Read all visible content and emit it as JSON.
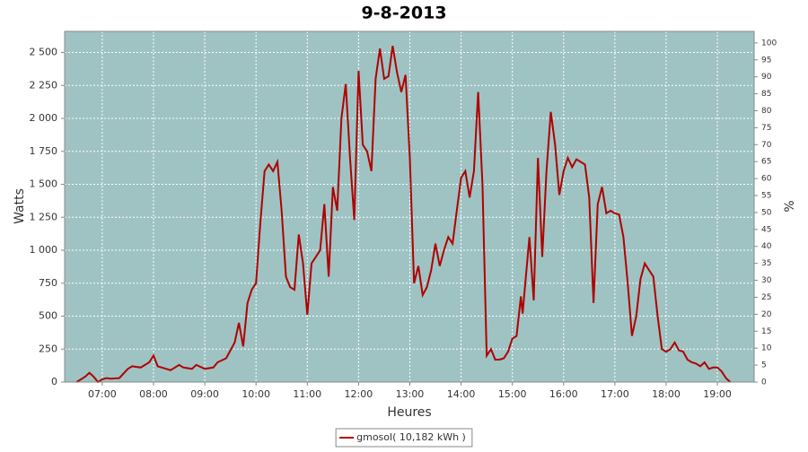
{
  "chart_data": {
    "type": "line",
    "title": "9-8-2013",
    "xlabel": "Heures",
    "ylabel": "Watts",
    "y2label": "%",
    "x": [
      "06:30",
      "06:40",
      "06:45",
      "06:50",
      "06:55",
      "07:00",
      "07:05",
      "07:10",
      "07:20",
      "07:30",
      "07:35",
      "07:45",
      "07:55",
      "08:00",
      "08:05",
      "08:15",
      "08:20",
      "08:30",
      "08:35",
      "08:45",
      "08:50",
      "09:00",
      "09:10",
      "09:15",
      "09:25",
      "09:35",
      "09:40",
      "09:45",
      "09:50",
      "09:55",
      "10:00",
      "10:05",
      "10:10",
      "10:15",
      "10:20",
      "10:25",
      "10:30",
      "10:35",
      "10:40",
      "10:45",
      "10:50",
      "10:55",
      "11:00",
      "11:05",
      "11:10",
      "11:15",
      "11:20",
      "11:25",
      "11:30",
      "11:35",
      "11:40",
      "11:45",
      "11:50",
      "11:55",
      "12:00",
      "12:05",
      "12:10",
      "12:15",
      "12:20",
      "12:25",
      "12:30",
      "12:35",
      "12:40",
      "12:45",
      "12:50",
      "12:55",
      "13:00",
      "13:05",
      "13:10",
      "13:15",
      "13:20",
      "13:25",
      "13:30",
      "13:35",
      "13:40",
      "13:45",
      "13:50",
      "13:55",
      "14:00",
      "14:05",
      "14:10",
      "14:15",
      "14:20",
      "14:25",
      "14:30",
      "14:35",
      "14:40",
      "14:45",
      "14:50",
      "14:55",
      "15:00",
      "15:05",
      "15:10",
      "15:12",
      "15:20",
      "15:25",
      "15:30",
      "15:35",
      "15:40",
      "15:45",
      "15:50",
      "15:55",
      "16:00",
      "16:05",
      "16:10",
      "16:15",
      "16:20",
      "16:25",
      "16:30",
      "16:35",
      "16:40",
      "16:45",
      "16:50",
      "16:55",
      "17:00",
      "17:05",
      "17:10",
      "17:15",
      "17:20",
      "17:25",
      "17:30",
      "17:35",
      "17:40",
      "17:45",
      "17:50",
      "17:55",
      "18:00",
      "18:05",
      "18:10",
      "18:15",
      "18:20",
      "18:25",
      "18:30",
      "18:35",
      "18:40",
      "18:45",
      "18:50",
      "18:55",
      "19:00",
      "19:05",
      "19:10",
      "19:15"
    ],
    "series": [
      {
        "name": "gmosol( 10,182 kWh )",
        "color": "#b00000",
        "values": [
          0,
          40,
          70,
          40,
          0,
          20,
          30,
          25,
          30,
          100,
          120,
          110,
          150,
          200,
          120,
          100,
          90,
          130,
          110,
          100,
          130,
          100,
          110,
          150,
          180,
          300,
          450,
          270,
          600,
          700,
          750,
          1200,
          1600,
          1650,
          1600,
          1670,
          1300,
          800,
          720,
          700,
          1120,
          900,
          510,
          900,
          950,
          1000,
          1350,
          800,
          1480,
          1300,
          2000,
          2260,
          1700,
          1230,
          2360,
          1800,
          1750,
          1600,
          2300,
          2530,
          2300,
          2320,
          2550,
          2350,
          2200,
          2330,
          1700,
          750,
          880,
          660,
          720,
          850,
          1050,
          880,
          1000,
          1100,
          1050,
          1300,
          1550,
          1600,
          1400,
          1600,
          2200,
          1500,
          200,
          250,
          170,
          170,
          180,
          230,
          330,
          350,
          650,
          520,
          1100,
          620,
          1700,
          950,
          1600,
          2050,
          1800,
          1420,
          1600,
          1700,
          1630,
          1690,
          1670,
          1650,
          1400,
          600,
          1350,
          1480,
          1280,
          1300,
          1280,
          1270,
          1100,
          750,
          350,
          500,
          780,
          900,
          850,
          800,
          500,
          250,
          230,
          250,
          300,
          240,
          230,
          170,
          150,
          140,
          120,
          150,
          100,
          110,
          110,
          80,
          30,
          0
        ]
      }
    ],
    "xlim": [
      "06:16",
      "19:43"
    ],
    "xticks": [
      "07:00",
      "08:00",
      "09:00",
      "10:00",
      "11:00",
      "12:00",
      "13:00",
      "14:00",
      "15:00",
      "16:00",
      "17:00",
      "18:00",
      "19:00"
    ],
    "ylim": [
      0,
      2660
    ],
    "yticks": [
      0,
      250,
      500,
      750,
      {
        "value": 1000,
        "label": "1 000"
      },
      {
        "value": 1250,
        "label": "1 250"
      },
      {
        "value": 1500,
        "label": "1 500"
      },
      {
        "value": 1750,
        "label": "1 750"
      },
      {
        "value": 2000,
        "label": "2 000"
      },
      {
        "value": 2250,
        "label": "2 250"
      },
      {
        "value": 2500,
        "label": "2 500"
      }
    ],
    "y2lim": [
      0,
      103.4
    ],
    "y2ticks": [
      0,
      5,
      10,
      15,
      20,
      25,
      30,
      35,
      40,
      45,
      50,
      55,
      60,
      65,
      70,
      75,
      80,
      85,
      90,
      95,
      100
    ],
    "grid": true,
    "plot_background": "#9fc3c3",
    "legend": "bottom"
  }
}
